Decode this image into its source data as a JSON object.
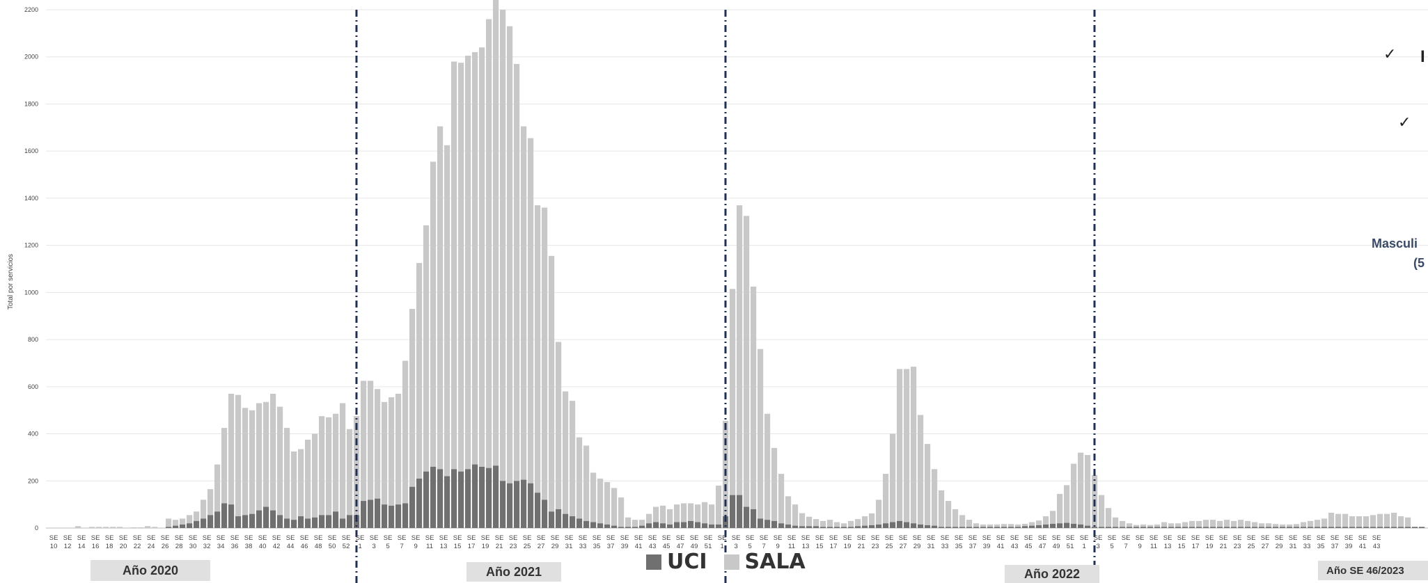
{
  "chart_data": {
    "type": "bar",
    "stacked": true,
    "ylabel": "Total por servicios",
    "ylim": [
      0,
      2200
    ],
    "yticks": [
      0,
      200,
      400,
      600,
      800,
      1000,
      1200,
      1400,
      1600,
      1800,
      2000,
      2200
    ],
    "grid": true,
    "legend_position": "bottom-center",
    "series": [
      {
        "name": "UCI",
        "color": "#707070",
        "values": [
          0,
          0,
          0,
          0,
          0,
          0,
          0,
          0,
          0,
          0,
          0,
          0,
          0,
          0,
          0,
          0,
          0,
          5,
          10,
          15,
          20,
          30,
          40,
          55,
          70,
          105,
          100,
          50,
          55,
          60,
          75,
          90,
          75,
          55,
          40,
          35,
          50,
          40,
          45,
          55,
          55,
          70,
          40,
          55,
          55,
          115,
          120,
          125,
          100,
          95,
          100,
          105,
          175,
          210,
          240,
          260,
          250,
          220,
          250,
          240,
          250,
          270,
          260,
          255,
          265,
          200,
          190,
          200,
          205,
          190,
          150,
          120,
          70,
          80,
          60,
          50,
          40,
          30,
          25,
          20,
          15,
          10,
          5,
          5,
          5,
          10,
          20,
          25,
          20,
          15,
          25,
          25,
          30,
          25,
          20,
          15,
          15,
          50,
          140,
          140,
          90,
          80,
          40,
          35,
          30,
          20,
          15,
          10,
          8,
          8,
          8,
          5,
          5,
          5,
          5,
          5,
          8,
          10,
          12,
          15,
          20,
          25,
          30,
          25,
          20,
          15,
          12,
          10,
          5,
          5,
          5,
          5,
          5,
          5,
          5,
          5,
          5,
          5,
          5,
          5,
          8,
          10,
          12,
          15,
          18,
          20,
          22,
          18,
          15,
          10,
          5,
          5,
          5,
          5,
          5,
          5,
          5,
          5,
          5,
          5,
          5,
          5,
          5,
          5,
          5,
          5,
          5,
          5,
          5,
          5,
          5,
          5,
          5,
          5,
          5,
          5,
          5,
          5,
          5,
          5,
          5,
          5,
          5,
          5,
          5,
          5,
          5,
          5,
          5,
          5,
          5,
          5,
          5,
          5,
          5,
          5,
          5,
          5
        ]
      },
      {
        "name": "SALA",
        "color": "#c8c8c8",
        "values": [
          0,
          0,
          0,
          0,
          8,
          0,
          5,
          5,
          5,
          5,
          5,
          0,
          3,
          3,
          8,
          5,
          0,
          35,
          25,
          25,
          35,
          40,
          80,
          110,
          200,
          320,
          470,
          515,
          455,
          440,
          455,
          445,
          495,
          460,
          385,
          290,
          285,
          335,
          355,
          420,
          415,
          415,
          490,
          365,
          420,
          510,
          505,
          465,
          435,
          460,
          470,
          605,
          755,
          915,
          1045,
          1295,
          1455,
          1405,
          1730,
          1735,
          1755,
          1750,
          1780,
          1905,
          2025,
          2000,
          1940,
          1770,
          1500,
          1465,
          1220,
          1240,
          1085,
          710,
          520,
          490,
          345,
          320,
          210,
          190,
          180,
          160,
          125,
          40,
          30,
          25,
          40,
          65,
          75,
          65,
          75,
          80,
          75,
          75,
          90,
          85,
          165,
          405,
          875,
          1230,
          1235,
          945,
          720,
          450,
          310,
          210,
          120,
          90,
          55,
          40,
          30,
          25,
          30,
          20,
          15,
          25,
          30,
          40,
          50,
          105,
          210,
          375,
          645,
          650,
          665,
          465,
          345,
          240,
          155,
          110,
          75,
          50,
          30,
          15,
          10,
          10,
          10,
          12,
          12,
          10,
          10,
          15,
          20,
          35,
          55,
          125,
          160,
          255,
          305,
          300,
          220,
          135,
          80,
          40,
          25,
          15,
          8,
          10,
          8,
          10,
          20,
          15,
          15,
          20,
          25,
          25,
          30,
          30,
          25,
          30,
          25,
          30,
          25,
          20,
          15,
          15,
          12,
          10,
          10,
          12,
          20,
          25,
          30,
          35,
          60,
          55,
          55,
          45,
          45,
          45,
          50,
          55,
          55,
          60,
          45,
          40
        ]
      }
    ],
    "x_tick_labels": [
      "SE 10",
      "SE 12",
      "SE 14",
      "SE 16",
      "SE 18",
      "SE 20",
      "SE 22",
      "SE 24",
      "SE 26",
      "SE 28",
      "SE 30",
      "SE 32",
      "SE 34",
      "SE 36",
      "SE 38",
      "SE 40",
      "SE 42",
      "SE 44",
      "SE 46",
      "SE 48",
      "SE 50",
      "SE 52",
      "SE 1",
      "SE 3",
      "SE 5",
      "SE 7",
      "SE 9",
      "SE 11",
      "SE 13",
      "SE 15",
      "SE 17",
      "SE 19",
      "SE 21",
      "SE 23",
      "SE 25",
      "SE 27",
      "SE 29",
      "SE 31",
      "SE 33",
      "SE 35",
      "SE 37",
      "SE 39",
      "SE 41",
      "SE 43",
      "SE 45",
      "SE 47",
      "SE 49",
      "SE 51",
      "SE 1",
      "SE 3",
      "SE 5",
      "SE 7",
      "SE 9",
      "SE 11",
      "SE 13",
      "SE 15",
      "SE 17",
      "SE 19",
      "SE 21",
      "SE 23",
      "SE 25",
      "SE 27",
      "SE 29",
      "SE 31",
      "SE 33",
      "SE 35",
      "SE 37",
      "SE 39",
      "SE 41",
      "SE 43",
      "SE 45",
      "SE 47",
      "SE 49",
      "SE 51",
      "SE 1",
      "SE 3",
      "SE 5",
      "SE 7",
      "SE 9",
      "SE 11",
      "SE 13",
      "SE 15",
      "SE 17",
      "SE 19",
      "SE 21",
      "SE 23",
      "SE 25",
      "SE 27",
      "SE 29",
      "SE 31",
      "SE 33",
      "SE 35",
      "SE 37",
      "SE 39",
      "SE 41",
      "SE 43"
    ],
    "year_labels": [
      "Año 2020",
      "Año 2021",
      "Año 2022",
      "Año SE 46/2023"
    ]
  },
  "legend": {
    "uci": "UCI",
    "sala": "SALA"
  },
  "side_text": {
    "line1": "Masculi",
    "line2": "(5"
  },
  "side_checks": [
    "✓",
    "✓"
  ],
  "side_check_follow": "I",
  "colors": {
    "uci": "#707070",
    "sala": "#c8c8c8",
    "divider": "#1f2f55",
    "year_box": "#e0e0e0"
  }
}
